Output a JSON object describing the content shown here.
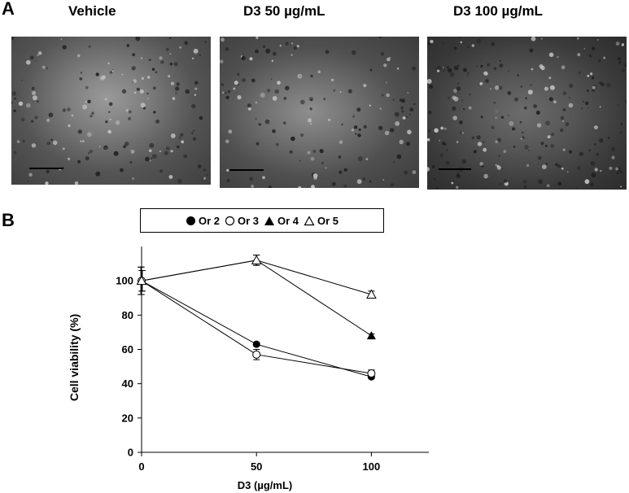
{
  "panel_a": {
    "letter": "A",
    "images": [
      {
        "title": "Vehicle",
        "variant": "vehicle"
      },
      {
        "title": "D3 50 µg/mL",
        "variant": "d50"
      },
      {
        "title": "D3 100 µg/mL",
        "variant": "d100"
      }
    ]
  },
  "panel_b": {
    "letter": "B"
  },
  "chart_data": {
    "type": "line",
    "xlabel": "D3 (µg/mL)",
    "ylabel": "Cell viability (%)",
    "x": [
      0,
      50,
      100
    ],
    "xlim": [
      0,
      125
    ],
    "ylim": [
      0,
      120
    ],
    "xticks": [
      "0",
      "50",
      "100"
    ],
    "yticks": [
      "0",
      "20",
      "40",
      "60",
      "80",
      "100"
    ],
    "grid": false,
    "legend_position": "top",
    "series": [
      {
        "name": "Or 2",
        "marker": "filled-circle",
        "values": [
          100,
          63,
          44
        ],
        "errors": [
          8,
          1,
          1
        ]
      },
      {
        "name": "Or 3",
        "marker": "open-circle",
        "values": [
          100,
          57,
          46
        ],
        "errors": [
          8,
          3,
          2
        ]
      },
      {
        "name": "Or 4",
        "marker": "filled-triangle",
        "values": [
          100,
          112,
          68
        ],
        "errors": [
          6,
          3,
          1
        ]
      },
      {
        "name": "Or 5",
        "marker": "open-triangle",
        "values": [
          100,
          112,
          92
        ],
        "errors": [
          6,
          3,
          2
        ]
      }
    ],
    "colors": {
      "line": "#000000",
      "marker_fill": "#000000",
      "marker_open": "#ffffff"
    }
  }
}
